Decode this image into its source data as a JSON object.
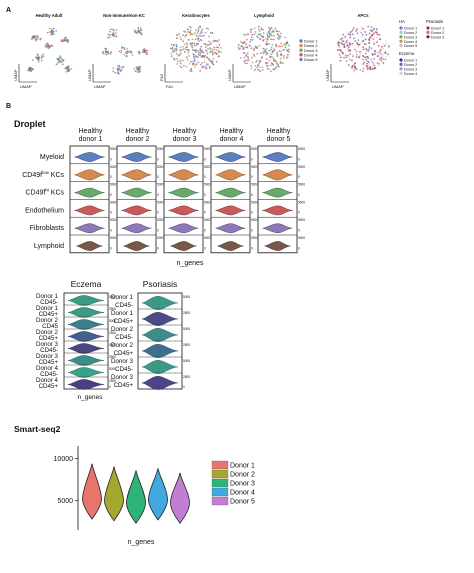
{
  "panel_labels": {
    "a": "A",
    "b": "B"
  },
  "panelA": {
    "umap_titles": [
      "Healthy Adult",
      "Non-immune/non-KC",
      "Keratinocytes",
      "Lymphoid",
      "APCs"
    ],
    "axis": {
      "umap": "UMAP",
      "fa1": "FA1",
      "fa2": "FA2"
    },
    "donor_legend": [
      "Donor 1",
      "Donor 2",
      "Donor 3",
      "Donor 4",
      "Donor 5"
    ],
    "apc_legend": {
      "ha_title": "HA",
      "ha": [
        "Donor 1",
        "Donor 2",
        "Donor 3",
        "Donor 4",
        "Donor 5"
      ],
      "psoriasis_title": "Psoriasis",
      "psoriasis": [
        "Donor 1",
        "Donor 2",
        "Donor 3"
      ],
      "eczema_title": "Eczema",
      "eczema": [
        "Donor 1",
        "Donor 2",
        "Donor 3",
        "Donor 4"
      ]
    }
  },
  "chart_data": [
    {
      "type": "violin",
      "section": "Droplet",
      "columns": [
        "Healthy donor 1",
        "Healthy donor 2",
        "Healthy donor 3",
        "Healthy donor 4",
        "Healthy donor 5"
      ],
      "rows": [
        "Myeloid",
        "CD49f^low KCs",
        "CD49f^hi KCs",
        "Endothelium",
        "Fibroblasts",
        "Lymphoid"
      ],
      "row_colors": [
        "#5d7fbf",
        "#d88a4e",
        "#6aa96e",
        "#c85a5a",
        "#8f78b8",
        "#7a5848"
      ],
      "ticks": [
        0,
        5000
      ],
      "xlabel": "n_genes"
    },
    {
      "type": "violin",
      "title": "Eczema",
      "rows": [
        "Donor 1 CD45-",
        "Donor 1 CD45+",
        "Donor 2 CD45",
        "Donor 2 CD45+",
        "Donor 3 CD45-",
        "Donor 3 CD45+",
        "Donor 4 CD45-",
        "Donor 4 CD45+"
      ],
      "row_colors": [
        "#3c9a86",
        "#3c9a86",
        "#3b7f8c",
        "#455f8e",
        "#4a4784",
        "#3d8c8a",
        "#37a189",
        "#4a3f80"
      ],
      "ticks": [
        0,
        2500,
        5000
      ],
      "xlabel": "n_genes"
    },
    {
      "type": "violin",
      "title": "Psoriasis",
      "rows": [
        "Donor 1 CD45-",
        "Donor 1 CD45+",
        "Donor 2 CD45-",
        "Donor 2 CD45+",
        "Donor 3 CD45-",
        "Donor 3 CD45+"
      ],
      "row_colors": [
        "#3a9a88",
        "#4b4b86",
        "#3c8c8a",
        "#3e6f8e",
        "#3a9a88",
        "#4b4486"
      ],
      "ticks": [
        0,
        2500,
        5000
      ],
      "xlabel": "n_genes"
    },
    {
      "type": "violin",
      "section": "Smart-seq2",
      "categories": [
        "Donor 1",
        "Donor 2",
        "Donor 3",
        "Donor 4",
        "Donor 5"
      ],
      "colors": [
        "#e8746c",
        "#a5a82e",
        "#2eb37a",
        "#41a9e0",
        "#c07fd3"
      ],
      "medians": [
        5200,
        5000,
        4700,
        5100,
        4700
      ],
      "yticks": [
        5000,
        10000
      ],
      "ylim": [
        1500,
        11500
      ],
      "xlabel": "n_genes"
    }
  ]
}
